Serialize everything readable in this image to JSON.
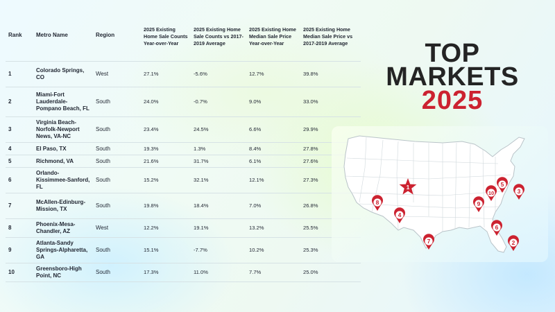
{
  "table": {
    "headers": {
      "rank": "Rank",
      "metro": "Metro Name",
      "region": "Region",
      "sale_yoy": "2025 Existing Home Sale Counts Year-over-Year",
      "sale_vs": "2025 Existing Home Sale Counts vs 2017-2019 Average",
      "price_yoy": "2025 Existing Home Median Sale Price Year-over-Year",
      "price_vs": "2025 Existing Home Median Sale Price vs 2017-2019 Average"
    },
    "rows": [
      {
        "rank": "1",
        "metro": "Colorado Springs, CO",
        "region": "West",
        "sale_yoy": "27.1%",
        "sale_vs": "-5.6%",
        "price_yoy": "12.7%",
        "price_vs": "39.8%"
      },
      {
        "rank": "2",
        "metro": "Miami-Fort Lauderdale-Pompano Beach, FL",
        "region": "South",
        "sale_yoy": "24.0%",
        "sale_vs": "-0.7%",
        "price_yoy": "9.0%",
        "price_vs": "33.0%"
      },
      {
        "rank": "3",
        "metro": "Virginia Beach-Norfolk-Newport News, VA-NC",
        "region": "South",
        "sale_yoy": "23.4%",
        "sale_vs": "24.5%",
        "price_yoy": "6.6%",
        "price_vs": "29.9%"
      },
      {
        "rank": "4",
        "metro": "El Paso, TX",
        "region": "South",
        "sale_yoy": "19.3%",
        "sale_vs": "1.3%",
        "price_yoy": "8.4%",
        "price_vs": "27.8%"
      },
      {
        "rank": "5",
        "metro": "Richmond, VA",
        "region": "South",
        "sale_yoy": "21.6%",
        "sale_vs": "31.7%",
        "price_yoy": "6.1%",
        "price_vs": "27.6%"
      },
      {
        "rank": "6",
        "metro": "Orlando-Kissimmee-Sanford, FL",
        "region": "South",
        "sale_yoy": "15.2%",
        "sale_vs": "32.1%",
        "price_yoy": "12.1%",
        "price_vs": "27.3%"
      },
      {
        "rank": "7",
        "metro": "McAllen-Edinburg-Mission, TX",
        "region": "South",
        "sale_yoy": "19.8%",
        "sale_vs": "18.4%",
        "price_yoy": "7.0%",
        "price_vs": "26.8%"
      },
      {
        "rank": "8",
        "metro": "Phoenix-Mesa-Chandler, AZ",
        "region": "West",
        "sale_yoy": "12.2%",
        "sale_vs": "19.1%",
        "price_yoy": "13.2%",
        "price_vs": "25.5%"
      },
      {
        "rank": "9",
        "metro": "Atlanta-Sandy Springs-Alpharetta, GA",
        "region": "South",
        "sale_yoy": "15.1%",
        "sale_vs": "-7.7%",
        "price_yoy": "10.2%",
        "price_vs": "25.3%"
      },
      {
        "rank": "10",
        "metro": "Greensboro-High Point, NC",
        "region": "South",
        "sale_yoy": "17.3%",
        "sale_vs": "11.0%",
        "price_yoy": "7.7%",
        "price_vs": "25.0%"
      }
    ]
  },
  "title": {
    "line1": "TOP",
    "line2": "MARKETS",
    "line3": "2025"
  },
  "map": {
    "markers": [
      {
        "label": "1",
        "shape": "star"
      },
      {
        "label": "2",
        "shape": "pin"
      },
      {
        "label": "3",
        "shape": "pin"
      },
      {
        "label": "4",
        "shape": "pin"
      },
      {
        "label": "5",
        "shape": "pin"
      },
      {
        "label": "6",
        "shape": "pin"
      },
      {
        "label": "7",
        "shape": "pin"
      },
      {
        "label": "8",
        "shape": "pin"
      },
      {
        "label": "9",
        "shape": "pin"
      },
      {
        "label": "10",
        "shape": "pin"
      }
    ]
  },
  "colors": {
    "accent": "#cc2230",
    "title_dark": "#242424",
    "map_fill": "#ffffff",
    "map_stroke": "#b9c3c8"
  },
  "chart_data": {
    "type": "table",
    "columns": [
      "Rank",
      "Metro Name",
      "Region",
      "2025 Existing Home Sale Counts Year-over-Year",
      "2025 Existing Home Sale Counts vs 2017-2019 Average",
      "2025 Existing Home Median Sale Price Year-over-Year",
      "2025 Existing Home Median Sale Price vs 2017-2019 Average"
    ],
    "rows": [
      [
        1,
        "Colorado Springs, CO",
        "West",
        27.1,
        -5.6,
        12.7,
        39.8
      ],
      [
        2,
        "Miami-Fort Lauderdale-Pompano Beach, FL",
        "South",
        24.0,
        -0.7,
        9.0,
        33.0
      ],
      [
        3,
        "Virginia Beach-Norfolk-Newport News, VA-NC",
        "South",
        23.4,
        24.5,
        6.6,
        29.9
      ],
      [
        4,
        "El Paso, TX",
        "South",
        19.3,
        1.3,
        8.4,
        27.8
      ],
      [
        5,
        "Richmond, VA",
        "South",
        21.6,
        31.7,
        6.1,
        27.6
      ],
      [
        6,
        "Orlando-Kissimmee-Sanford, FL",
        "South",
        15.2,
        32.1,
        12.1,
        27.3
      ],
      [
        7,
        "McAllen-Edinburg-Mission, TX",
        "South",
        19.8,
        18.4,
        7.0,
        26.8
      ],
      [
        8,
        "Phoenix-Mesa-Chandler, AZ",
        "West",
        12.2,
        19.1,
        13.2,
        25.5
      ],
      [
        9,
        "Atlanta-Sandy Springs-Alpharetta, GA",
        "South",
        15.1,
        -7.7,
        10.2,
        25.3
      ],
      [
        10,
        "Greensboro-High Point, NC",
        "South",
        17.3,
        11.0,
        7.7,
        25.0
      ]
    ],
    "title": "TOP MARKETS 2025"
  }
}
